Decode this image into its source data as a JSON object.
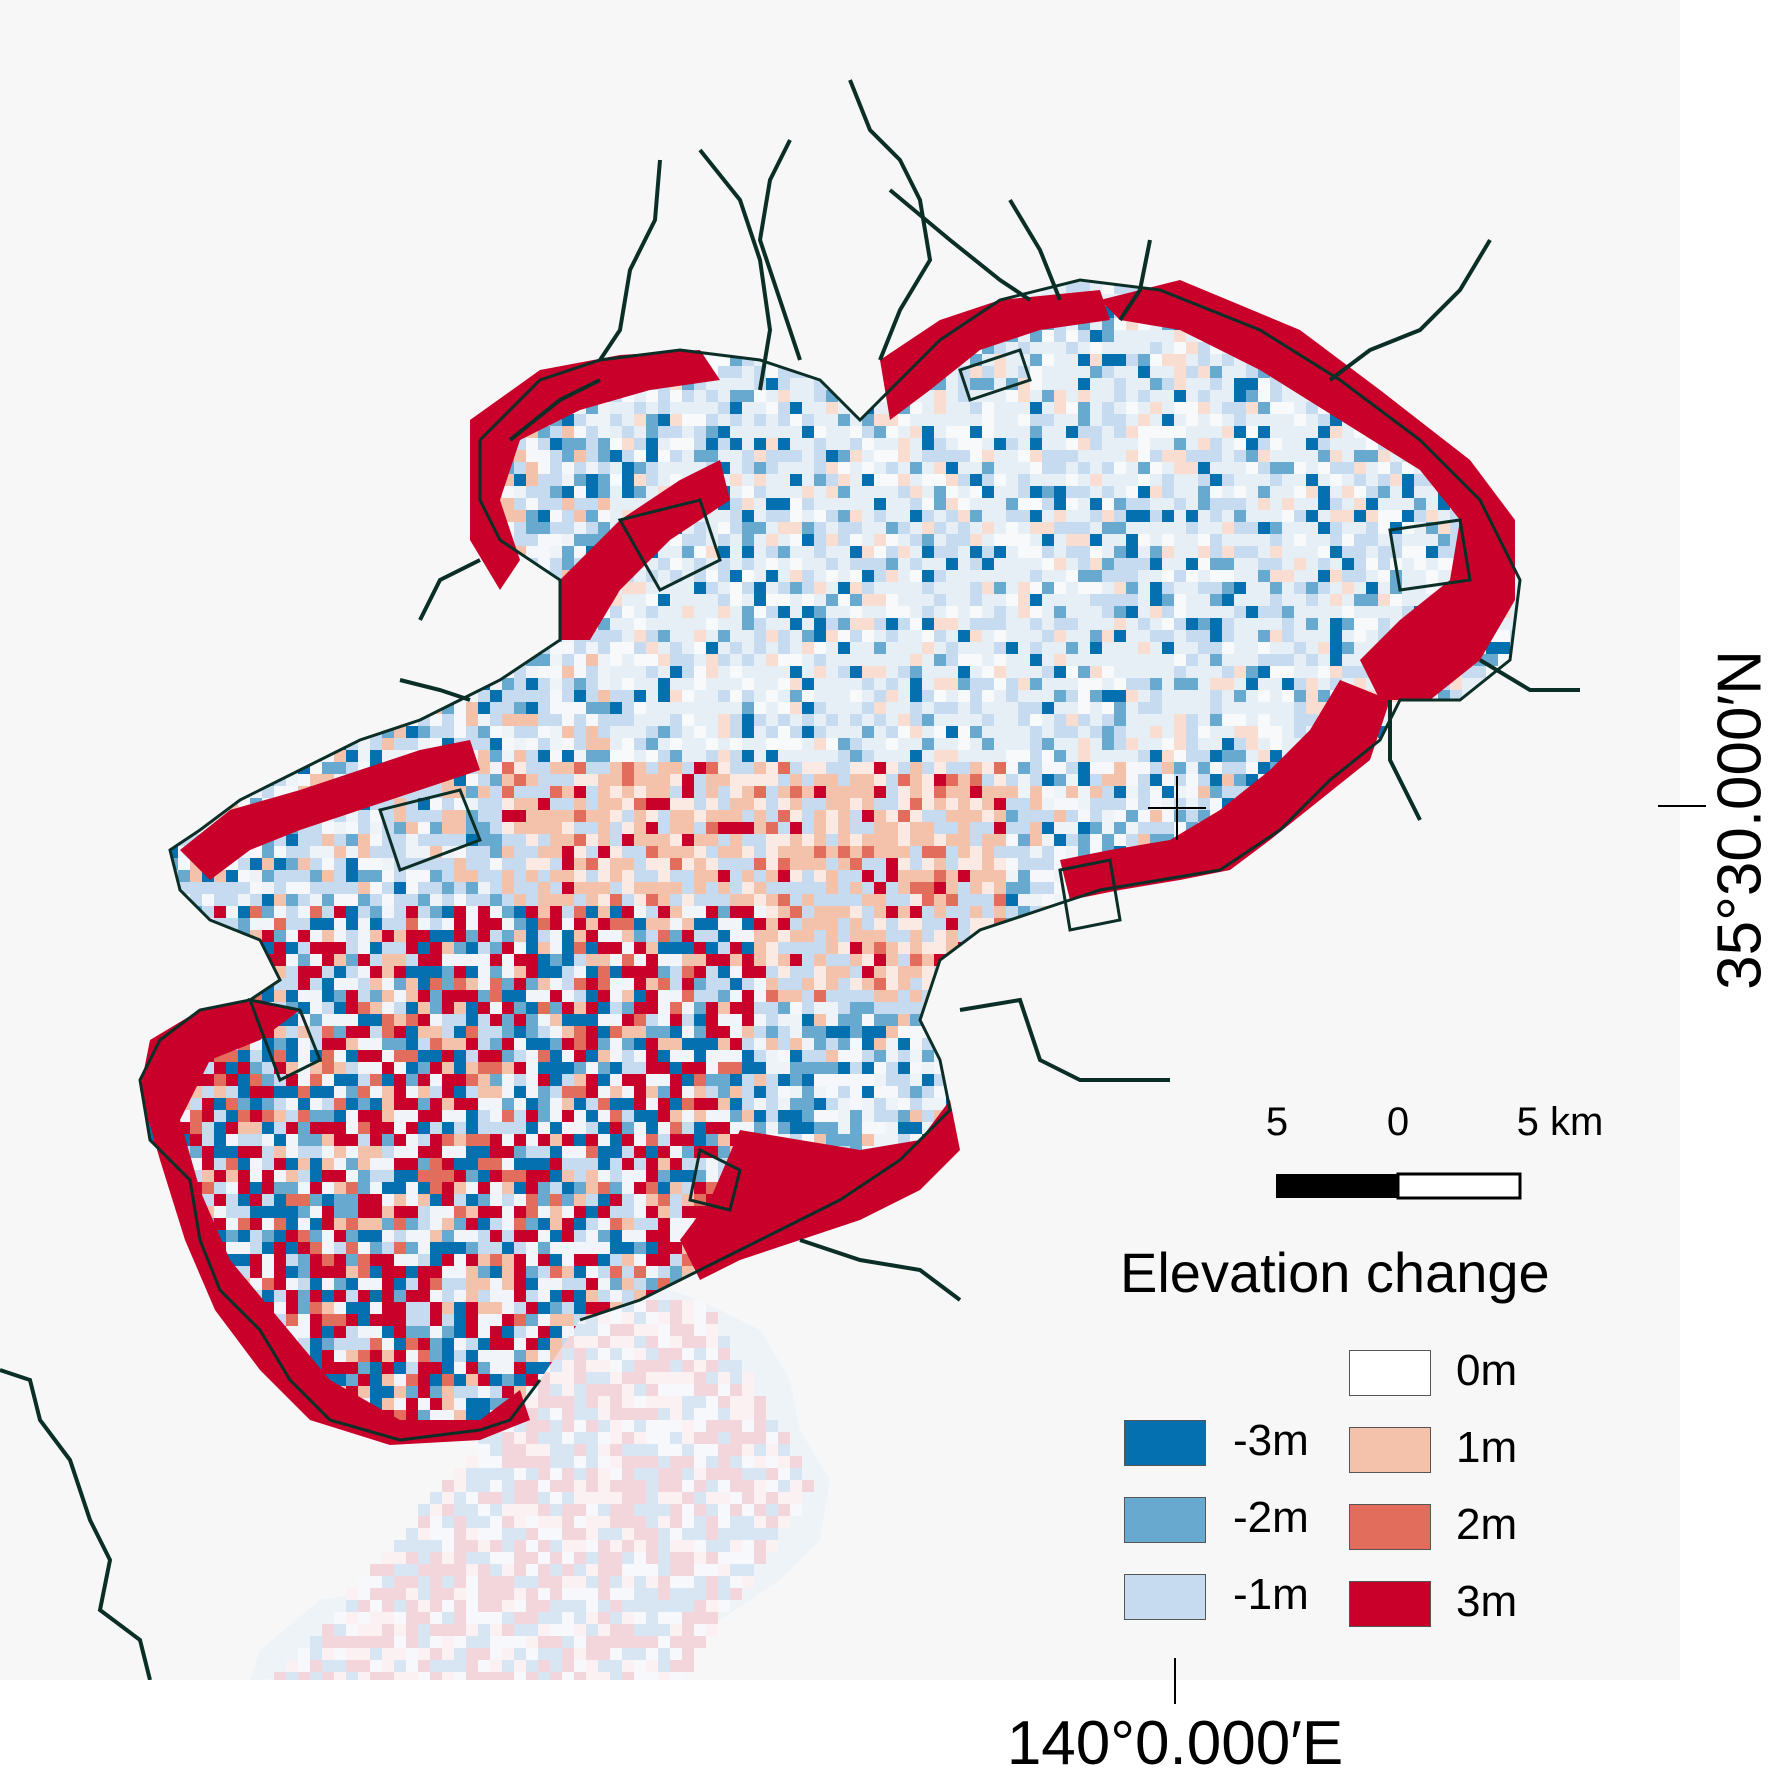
{
  "map": {
    "latitude_label": "35°30.000′N",
    "longitude_label": "140°0.000′E",
    "background_color": "#f7f7f7",
    "land_outline_color": "#0b2e26"
  },
  "scale_bar": {
    "left_label": "5",
    "middle_label": "0",
    "right_label": "5 km"
  },
  "legend": {
    "title": "Elevation change",
    "items": [
      {
        "label": "-3m",
        "color": "#0570b0"
      },
      {
        "label": "-2m",
        "color": "#67a9cf"
      },
      {
        "label": "-1m",
        "color": "#c6dbef"
      },
      {
        "label": "0m",
        "color": "#ffffff"
      },
      {
        "label": "1m",
        "color": "#f4c2aa"
      },
      {
        "label": "2m",
        "color": "#e26d5c"
      },
      {
        "label": "3m",
        "color": "#c8002a"
      }
    ]
  }
}
